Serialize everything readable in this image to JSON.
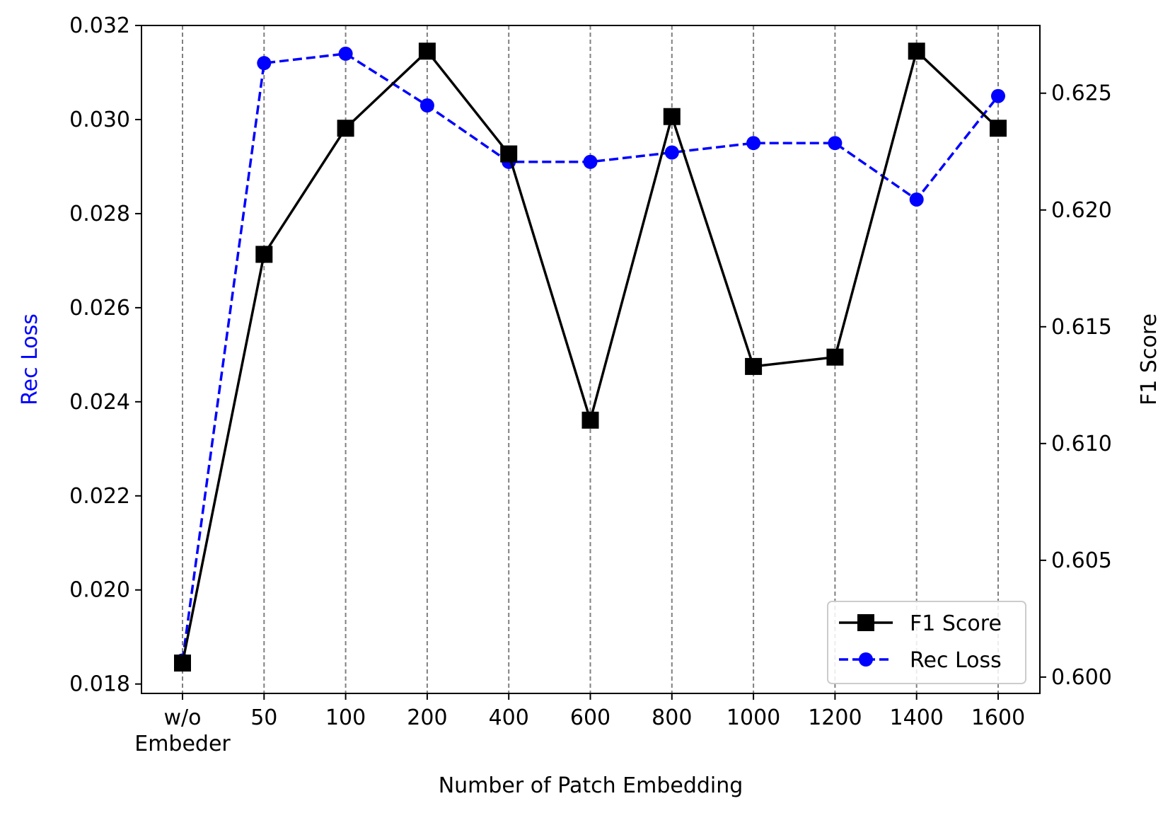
{
  "chart_data": {
    "type": "line",
    "xlabel": "Number of Patch Embedding",
    "categories": [
      "w/o\nEmbeder",
      "50",
      "100",
      "200",
      "400",
      "600",
      "800",
      "1000",
      "1200",
      "1400",
      "1600"
    ],
    "left_axis": {
      "label": "Rec Loss",
      "label_color": "#0000ff",
      "ylim": [
        0.0178,
        0.032
      ],
      "ticks": [
        "0.018",
        "0.020",
        "0.022",
        "0.024",
        "0.026",
        "0.028",
        "0.030",
        "0.032"
      ]
    },
    "right_axis": {
      "label": "F1 Score",
      "label_color": "#000000",
      "ylim": [
        0.5993,
        0.6279
      ],
      "ticks": [
        "0.600",
        "0.605",
        "0.610",
        "0.615",
        "0.620",
        "0.625"
      ]
    },
    "series": [
      {
        "name": "F1 Score",
        "axis": "right",
        "color": "#000000",
        "marker": "square",
        "linestyle": "solid",
        "values": [
          0.6006,
          0.6181,
          0.6235,
          0.6268,
          0.6224,
          0.611,
          0.624,
          0.6133,
          0.6137,
          0.6268,
          0.6235
        ]
      },
      {
        "name": "Rec Loss",
        "axis": "left",
        "color": "#0000ff",
        "marker": "circle",
        "linestyle": "dashed",
        "values": [
          0.0185,
          0.0312,
          0.0314,
          0.0303,
          0.0291,
          0.0291,
          0.0293,
          0.0295,
          0.0295,
          0.0283,
          0.0305
        ]
      }
    ],
    "grid": "vertical dashed gray at each category",
    "legend_position": "lower-right"
  }
}
